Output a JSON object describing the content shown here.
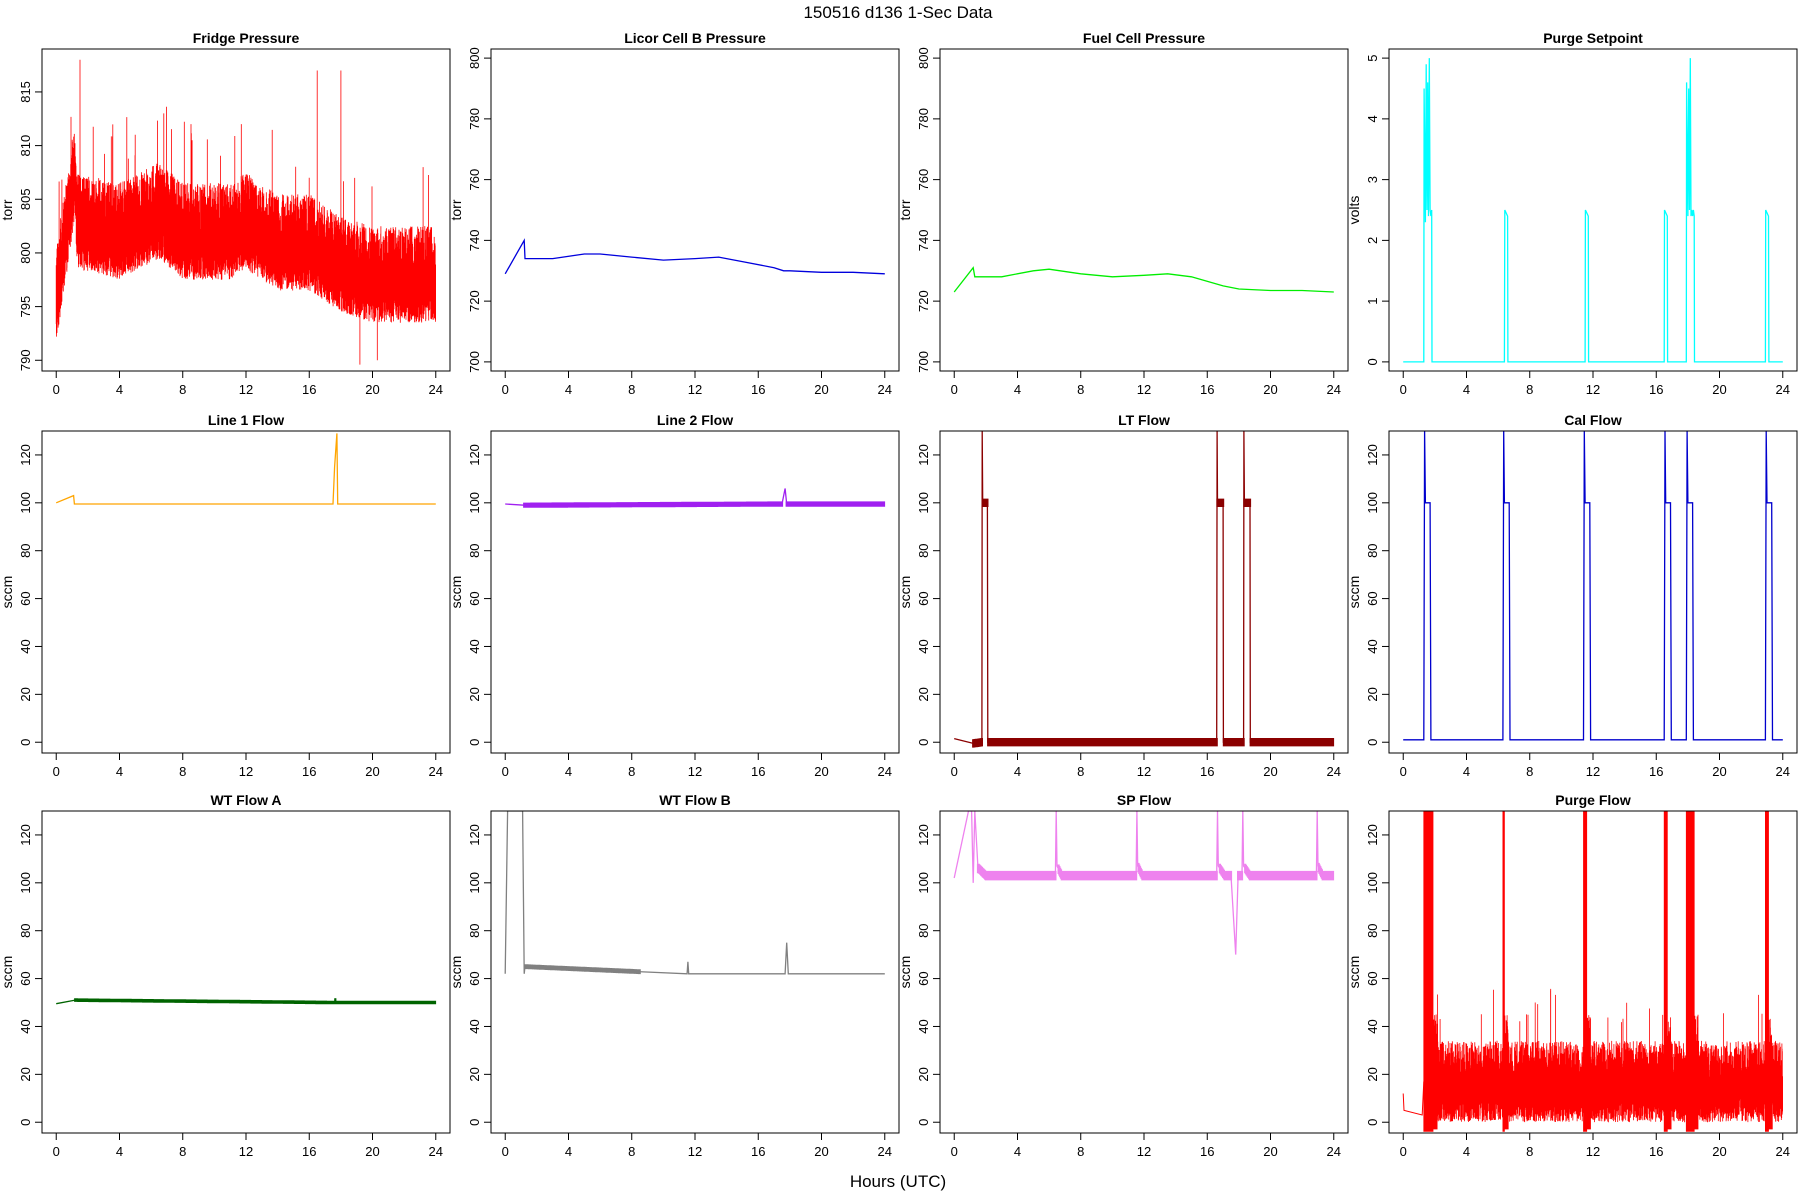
{
  "figure": {
    "title": "150516   d136   1-Sec Data",
    "xlabel": "Hours (UTC)"
  },
  "chart_data": [
    {
      "type": "line",
      "title": "Fridge Pressure",
      "ylabel": "torr",
      "color": "#ff0000",
      "xlim": [
        0,
        24
      ],
      "ylim": [
        789,
        819
      ],
      "xticks": [
        0,
        4,
        8,
        12,
        16,
        20,
        24
      ],
      "yticks": [
        790,
        795,
        800,
        805,
        810,
        815
      ],
      "style": "noise",
      "series": [
        {
          "name": "Fridge Pressure",
          "x": [
            0,
            1.2,
            1.3,
            4,
            6.5,
            8,
            11,
            12,
            14,
            16,
            17,
            18,
            20,
            22,
            24
          ],
          "y": [
            796,
            808,
            803,
            802,
            804,
            802,
            802,
            803,
            801,
            801,
            800,
            799,
            798,
            798,
            798
          ]
        }
      ],
      "noise_amp": 4.5
    },
    {
      "type": "line",
      "title": "Licor Cell B Pressure",
      "ylabel": "torr",
      "color": "#0000dd",
      "xlim": [
        0,
        24
      ],
      "ylim": [
        697,
        803
      ],
      "xticks": [
        0,
        4,
        8,
        12,
        16,
        20,
        24
      ],
      "yticks": [
        700,
        720,
        740,
        760,
        780,
        800
      ],
      "style": "line",
      "series": [
        {
          "name": "Licor Cell B Pressure",
          "x": [
            0,
            1.2,
            1.25,
            3,
            5,
            6,
            8,
            10,
            12,
            13.5,
            15,
            17,
            17.6,
            18,
            20,
            22,
            24
          ],
          "y": [
            729,
            740,
            734,
            734,
            735.5,
            735.5,
            734.5,
            733.5,
            734,
            734.5,
            733,
            731,
            730,
            730,
            729.5,
            729.5,
            729
          ]
        }
      ]
    },
    {
      "type": "line",
      "title": "Fuel Cell Pressure",
      "ylabel": "torr",
      "color": "#00ee00",
      "xlim": [
        0,
        24
      ],
      "ylim": [
        697,
        803
      ],
      "xticks": [
        0,
        4,
        8,
        12,
        16,
        20,
        24
      ],
      "yticks": [
        700,
        720,
        740,
        760,
        780,
        800
      ],
      "style": "line",
      "series": [
        {
          "name": "Fuel Cell Pressure",
          "x": [
            0,
            1.2,
            1.3,
            3,
            5,
            6,
            8,
            10,
            12,
            13.5,
            15,
            17,
            18,
            20,
            22,
            24
          ],
          "y": [
            723,
            731,
            728,
            728,
            730,
            730.5,
            729,
            728,
            728.5,
            729,
            728,
            725,
            724,
            723.5,
            723.5,
            723
          ]
        }
      ]
    },
    {
      "type": "line",
      "title": "Purge Setpoint",
      "ylabel": "volts",
      "color": "#00ffff",
      "xlim": [
        0,
        24
      ],
      "ylim": [
        -0.15,
        5.15
      ],
      "xticks": [
        0,
        4,
        8,
        12,
        16,
        20,
        24
      ],
      "yticks": [
        0,
        1,
        2,
        3,
        4,
        5
      ],
      "style": "line",
      "series": [
        {
          "name": "Purge Setpoint",
          "x": [
            0,
            1.3,
            1.32,
            1.4,
            1.45,
            1.5,
            1.55,
            1.6,
            1.65,
            1.7,
            1.75,
            1.8,
            1.82,
            6.4,
            6.42,
            6.6,
            6.62,
            11.5,
            11.52,
            11.7,
            11.72,
            16.5,
            16.52,
            16.7,
            16.72,
            17.9,
            17.92,
            18.0,
            18.05,
            18.1,
            18.15,
            18.2,
            18.25,
            18.3,
            18.35,
            18.4,
            18.42,
            22.9,
            22.92,
            23.1,
            23.12,
            24
          ],
          "y": [
            0,
            0,
            4.5,
            2.3,
            4.9,
            2.5,
            4.6,
            2.4,
            5.0,
            2.5,
            2.4,
            2.5,
            0,
            0,
            2.5,
            2.4,
            0,
            0,
            2.5,
            2.4,
            0,
            0,
            2.5,
            2.4,
            0,
            0,
            4.6,
            2.4,
            4.5,
            2.5,
            5.0,
            2.4,
            2.5,
            2.4,
            2.5,
            2.4,
            0,
            0,
            2.5,
            2.4,
            0,
            0
          ]
        }
      ]
    },
    {
      "type": "line",
      "title": "Line 1 Flow",
      "ylabel": "sccm",
      "color": "#ffa500",
      "xlim": [
        0,
        24
      ],
      "ylim": [
        -4.5,
        130
      ],
      "xticks": [
        0,
        4,
        8,
        12,
        16,
        20,
        24
      ],
      "yticks": [
        0,
        20,
        40,
        60,
        80,
        100,
        120
      ],
      "style": "line",
      "series": [
        {
          "name": "Line 1 Flow",
          "x": [
            0,
            1.1,
            1.15,
            17.5,
            17.6,
            17.75,
            17.8,
            24
          ],
          "y": [
            100,
            103,
            99.5,
            99.5,
            115,
            129,
            99.5,
            99.5
          ]
        }
      ]
    },
    {
      "type": "line",
      "title": "Line 2 Flow",
      "ylabel": "sccm",
      "color": "#a020f0",
      "xlim": [
        0,
        24
      ],
      "ylim": [
        -4.5,
        130
      ],
      "xticks": [
        0,
        4,
        8,
        12,
        16,
        20,
        24
      ],
      "yticks": [
        0,
        20,
        40,
        60,
        80,
        100,
        120
      ],
      "style": "band",
      "band_height": 2.2,
      "band_range": [
        1.2,
        24
      ],
      "series": [
        {
          "name": "Line 2 Flow",
          "x": [
            0,
            1.2,
            17.5,
            17.7,
            17.8,
            24
          ],
          "y": [
            99.5,
            99,
            99.5,
            106,
            99.5,
            99.5
          ]
        }
      ]
    },
    {
      "type": "line",
      "title": "LT Flow",
      "ylabel": "sccm",
      "color": "#8b0000",
      "xlim": [
        0,
        24
      ],
      "ylim": [
        -4.5,
        130
      ],
      "xticks": [
        0,
        4,
        8,
        12,
        16,
        20,
        24
      ],
      "yticks": [
        0,
        20,
        40,
        60,
        80,
        100,
        120
      ],
      "style": "band",
      "band_height": 3.5,
      "band_range": [
        1.2,
        24
      ],
      "series": [
        {
          "name": "LT Flow",
          "x": [
            0,
            1.2,
            1.75,
            1.77,
            1.8,
            2.1,
            2.12,
            16.6,
            16.62,
            16.65,
            17.0,
            17.02,
            18.3,
            18.32,
            18.35,
            18.7,
            18.72,
            24
          ],
          "y": [
            1.5,
            -0.5,
            0,
            130,
            100,
            100,
            0,
            0,
            130,
            100,
            100,
            0,
            0,
            130,
            100,
            100,
            0,
            0
          ]
        }
      ]
    },
    {
      "type": "line",
      "title": "Cal Flow",
      "ylabel": "sccm",
      "color": "#0000cd",
      "xlim": [
        0,
        24
      ],
      "ylim": [
        -4.5,
        130
      ],
      "xticks": [
        0,
        4,
        8,
        12,
        16,
        20,
        24
      ],
      "yticks": [
        0,
        20,
        40,
        60,
        80,
        100,
        120
      ],
      "style": "line",
      "series": [
        {
          "name": "Cal Flow",
          "x": [
            0,
            1.3,
            1.35,
            1.4,
            1.7,
            1.75,
            1.8,
            6.3,
            6.35,
            6.4,
            6.7,
            6.75,
            11.4,
            11.45,
            11.5,
            11.8,
            11.85,
            16.5,
            16.55,
            16.6,
            16.9,
            16.95,
            17.9,
            17.95,
            18.0,
            18.3,
            18.35,
            22.9,
            22.95,
            23.0,
            23.3,
            23.35,
            24
          ],
          "y": [
            1,
            1,
            130,
            100,
            100,
            1,
            1,
            1,
            130,
            100,
            100,
            1,
            1,
            130,
            100,
            100,
            1,
            1,
            130,
            100,
            100,
            1,
            1,
            130,
            100,
            100,
            1,
            1,
            130,
            100,
            100,
            1,
            1
          ]
        }
      ]
    },
    {
      "type": "line",
      "title": "WT Flow A",
      "ylabel": "sccm",
      "color": "#006400",
      "xlim": [
        0,
        24
      ],
      "ylim": [
        -4.5,
        130
      ],
      "xticks": [
        0,
        4,
        8,
        12,
        16,
        20,
        24
      ],
      "yticks": [
        0,
        20,
        40,
        60,
        80,
        100,
        120
      ],
      "style": "band",
      "band_height": 1.5,
      "band_range": [
        1.2,
        24
      ],
      "series": [
        {
          "name": "WT Flow A",
          "x": [
            0,
            1.2,
            17.6,
            17.65,
            17.7,
            24
          ],
          "y": [
            49.5,
            51,
            50,
            51,
            50,
            50
          ]
        }
      ]
    },
    {
      "type": "line",
      "title": "WT Flow B",
      "ylabel": "sccm",
      "color": "#808080",
      "xlim": [
        0,
        24
      ],
      "ylim": [
        -4.5,
        130
      ],
      "xticks": [
        0,
        4,
        8,
        12,
        16,
        20,
        24
      ],
      "yticks": [
        0,
        20,
        40,
        60,
        80,
        100,
        120
      ],
      "style": "band",
      "band_height": 2,
      "band_range": [
        1.2,
        24
      ],
      "series": [
        {
          "name": "WT Flow B",
          "x": [
            0,
            0.15,
            1.1,
            1.2,
            1.25,
            11.5,
            11.55,
            11.6,
            17.7,
            17.8,
            17.9,
            24
          ],
          "y": [
            62,
            130,
            130,
            62,
            65,
            62,
            67,
            62,
            62,
            75,
            62,
            62
          ]
        }
      ]
    },
    {
      "type": "line",
      "title": "SP Flow",
      "ylabel": "sccm",
      "color": "#ee82ee",
      "xlim": [
        0,
        24
      ],
      "ylim": [
        -4.5,
        130
      ],
      "xticks": [
        0,
        4,
        8,
        12,
        16,
        20,
        24
      ],
      "yticks": [
        0,
        20,
        40,
        60,
        80,
        100,
        120
      ],
      "style": "band",
      "band_height": 4,
      "band_range": [
        1.3,
        24
      ],
      "series": [
        {
          "name": "SP Flow",
          "x": [
            0,
            0.9,
            1.1,
            1.2,
            1.3,
            1.5,
            1.55,
            2.0,
            2.05,
            6.4,
            6.45,
            6.5,
            6.8,
            11.5,
            11.55,
            11.6,
            11.9,
            16.6,
            16.65,
            16.7,
            17.1,
            17.5,
            17.8,
            17.95,
            18.2,
            18.25,
            18.3,
            18.7,
            22.9,
            22.95,
            23.0,
            23.3,
            24
          ],
          "y": [
            102,
            130,
            130,
            100,
            130,
            106,
            106,
            103,
            103,
            103,
            130,
            107,
            103,
            103,
            130,
            107,
            103,
            103,
            130,
            107,
            103,
            103,
            70,
            103,
            103,
            130,
            107,
            103,
            103,
            130,
            107,
            103,
            103
          ]
        }
      ]
    },
    {
      "type": "line",
      "title": "Purge Flow",
      "ylabel": "sccm",
      "color": "#ff0000",
      "xlim": [
        0,
        24
      ],
      "ylim": [
        -4.5,
        130
      ],
      "xticks": [
        0,
        4,
        8,
        12,
        16,
        20,
        24
      ],
      "yticks": [
        0,
        20,
        40,
        60,
        80,
        100,
        120
      ],
      "style": "noise",
      "noise_amp": 17,
      "noise_range": [
        1.3,
        24
      ],
      "series": [
        {
          "name": "Purge Flow",
          "x": [
            0,
            0.05,
            1.2,
            1.3,
            2.0,
            2.1,
            6.3,
            6.4,
            11.4,
            11.5,
            16.5,
            16.6,
            17.9,
            18.0,
            18.4,
            18.5,
            22.9,
            23.0,
            24
          ],
          "y": [
            12,
            5,
            3,
            17,
            17,
            17,
            17,
            17,
            17,
            17,
            17,
            17,
            17,
            17,
            17,
            17,
            17,
            17,
            17
          ]
        }
      ],
      "bursts": [
        [
          1.3,
          1.9
        ],
        [
          6.3,
          6.4
        ],
        [
          11.4,
          11.6
        ],
        [
          16.5,
          16.7
        ],
        [
          17.9,
          18.4
        ],
        [
          22.9,
          23.1
        ]
      ]
    }
  ]
}
